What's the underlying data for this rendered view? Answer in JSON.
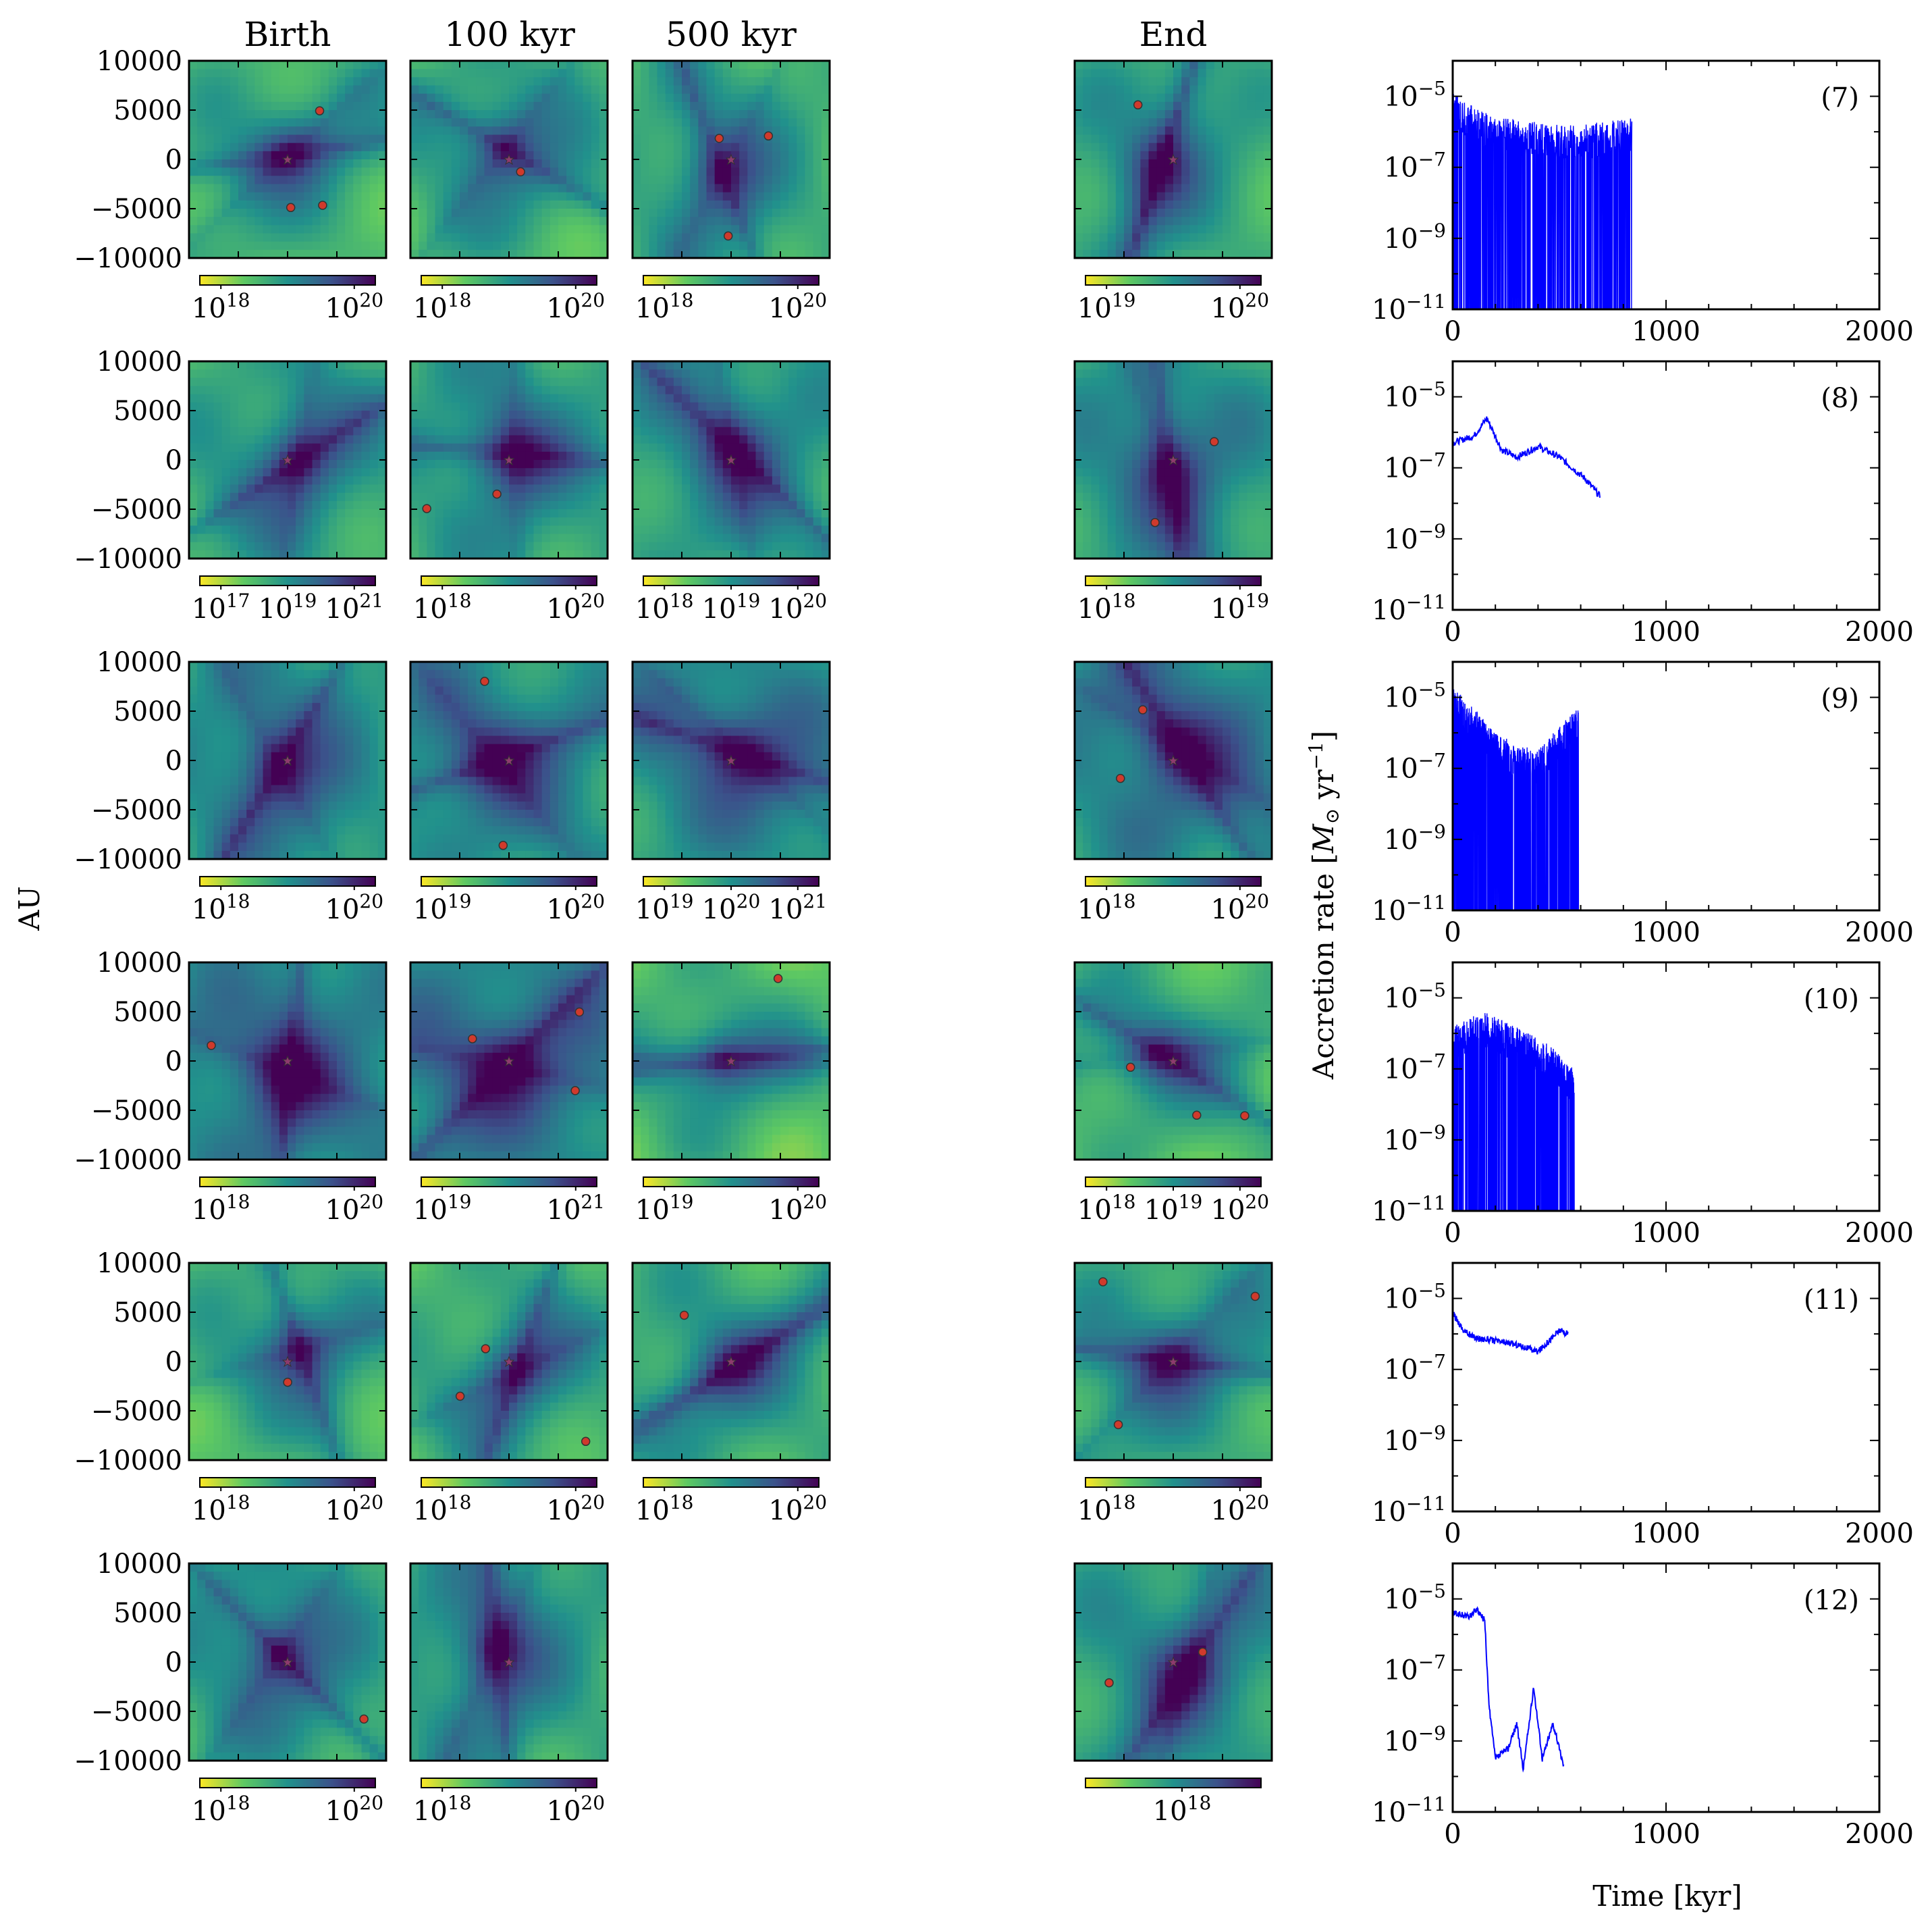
{
  "columns": [
    "Birth",
    "100 kyr",
    "500 kyr",
    "End"
  ],
  "ylabel_left": "AU",
  "ylabel_right": "Accretion rate [M_⊙ yr⁻¹]",
  "ylabel_right_parts": {
    "pre": "Accretion rate [",
    "sym": "M",
    "sub": "⊙",
    "mid": " yr",
    "sup": "−1",
    "post": "]"
  },
  "xlabel_right": "Time [kyr]",
  "colors": {
    "line": "#0000ff",
    "sink_circle": "#d03a2c",
    "sink_square": "#e0a020",
    "sink_triangle": "#6aa84f",
    "star": "#8e3a6e"
  },
  "colormap": "viridis_r",
  "chart_data": {
    "density_maps": {
      "type": "heatmap",
      "ylabel": "AU",
      "xlim": [
        -10000,
        10000
      ],
      "ylim": [
        -10000,
        10000
      ],
      "yticks": [
        "10000",
        "5000",
        "0",
        "−5000",
        "−10000"
      ],
      "rows": [
        [
          {
            "cb": [
              "10^18",
              "10^20"
            ],
            "seed": 1
          },
          {
            "cb": [
              "10^18",
              "10^20"
            ],
            "seed": 2
          },
          {
            "cb": [
              "10^18",
              "10^20"
            ],
            "seed": 3
          },
          {
            "cb": [
              "10^19",
              "10^20"
            ],
            "seed": 4
          }
        ],
        [
          {
            "cb": [
              "10^17",
              "10^19",
              "10^21"
            ],
            "seed": 5
          },
          {
            "cb": [
              "10^18",
              "10^20"
            ],
            "seed": 6
          },
          {
            "cb": [
              "10^18",
              "10^19",
              "10^20"
            ],
            "seed": 7
          },
          {
            "cb": [
              "10^18",
              "10^19"
            ],
            "seed": 8
          }
        ],
        [
          {
            "cb": [
              "10^18",
              "10^20"
            ],
            "seed": 9
          },
          {
            "cb": [
              "10^19",
              "10^20"
            ],
            "seed": 10
          },
          {
            "cb": [
              "10^19",
              "10^20",
              "10^21"
            ],
            "seed": 11
          },
          {
            "cb": [
              "10^18",
              "10^20"
            ],
            "seed": 12
          }
        ],
        [
          {
            "cb": [
              "10^18",
              "10^20"
            ],
            "seed": 13
          },
          {
            "cb": [
              "10^19",
              "10^21"
            ],
            "seed": 14
          },
          {
            "cb": [
              "10^19",
              "10^20"
            ],
            "seed": 15
          },
          {
            "cb": [
              "10^18",
              "10^19",
              "10^20"
            ],
            "seed": 16
          }
        ],
        [
          {
            "cb": [
              "10^18",
              "10^20"
            ],
            "seed": 17
          },
          {
            "cb": [
              "10^18",
              "10^20"
            ],
            "seed": 18
          },
          {
            "cb": [
              "10^18",
              "10^20"
            ],
            "seed": 19
          },
          {
            "cb": [
              "10^18",
              "10^20"
            ],
            "seed": 20
          }
        ],
        [
          {
            "cb": [
              "10^18",
              "10^20"
            ],
            "seed": 21
          },
          {
            "cb": [
              "10^18",
              "10^20"
            ],
            "seed": 22
          },
          null,
          {
            "cb": [
              "10^18"
            ],
            "seed": 23
          }
        ]
      ]
    },
    "accretion": {
      "type": "line",
      "xlabel": "Time [kyr]",
      "ylabel": "Accretion rate [M_⊙ yr⁻¹]",
      "xlim": [
        0,
        2000
      ],
      "xticks": [
        "0",
        "1000",
        "2000"
      ],
      "ylim_log10": [
        -11,
        -4
      ],
      "yticks": [
        "10^-5",
        "10^-7",
        "10^-9",
        "10^-11"
      ],
      "panels": [
        {
          "label": "(7)",
          "t_end": 840,
          "noisy": true,
          "trend": [
            [
              0,
              -5.4
            ],
            [
              100,
              -5.8
            ],
            [
              200,
              -6.1
            ],
            [
              400,
              -6.2
            ],
            [
              600,
              -6.3
            ],
            [
              840,
              -6.1
            ]
          ]
        },
        {
          "label": "(8)",
          "t_end": 690,
          "noisy": false,
          "trend": [
            [
              0,
              -6.3
            ],
            [
              100,
              -6.1
            ],
            [
              160,
              -5.6
            ],
            [
              230,
              -6.5
            ],
            [
              300,
              -6.7
            ],
            [
              400,
              -6.4
            ],
            [
              500,
              -6.7
            ],
            [
              560,
              -7.0
            ],
            [
              620,
              -7.3
            ],
            [
              690,
              -7.8
            ]
          ]
        },
        {
          "label": "(9)",
          "t_end": 590,
          "noisy": true,
          "trend": [
            [
              0,
              -5.2
            ],
            [
              100,
              -5.8
            ],
            [
              200,
              -6.5
            ],
            [
              300,
              -6.8
            ],
            [
              400,
              -7.0
            ],
            [
              500,
              -6.3
            ],
            [
              590,
              -5.8
            ]
          ]
        },
        {
          "label": "(10)",
          "t_end": 570,
          "noisy": true,
          "trend": [
            [
              0,
              -6.2
            ],
            [
              150,
              -5.9
            ],
            [
              300,
              -6.3
            ],
            [
              450,
              -6.8
            ],
            [
              570,
              -7.5
            ]
          ]
        },
        {
          "label": "(11)",
          "t_end": 540,
          "noisy": false,
          "trend": [
            [
              0,
              -5.4
            ],
            [
              50,
              -5.9
            ],
            [
              100,
              -6.1
            ],
            [
              200,
              -6.2
            ],
            [
              300,
              -6.3
            ],
            [
              400,
              -6.5
            ],
            [
              450,
              -6.2
            ],
            [
              500,
              -5.9
            ],
            [
              540,
              -6.0
            ]
          ]
        },
        {
          "label": "(12)",
          "t_end": 520,
          "noisy": false,
          "trend": [
            [
              0,
              -5.4
            ],
            [
              80,
              -5.5
            ],
            [
              110,
              -5.3
            ],
            [
              150,
              -5.6
            ],
            [
              170,
              -8.0
            ],
            [
              200,
              -9.5
            ],
            [
              260,
              -9.2
            ],
            [
              300,
              -8.5
            ],
            [
              330,
              -9.8
            ],
            [
              380,
              -7.5
            ],
            [
              420,
              -9.5
            ],
            [
              470,
              -8.5
            ],
            [
              520,
              -9.7
            ]
          ]
        }
      ]
    }
  }
}
